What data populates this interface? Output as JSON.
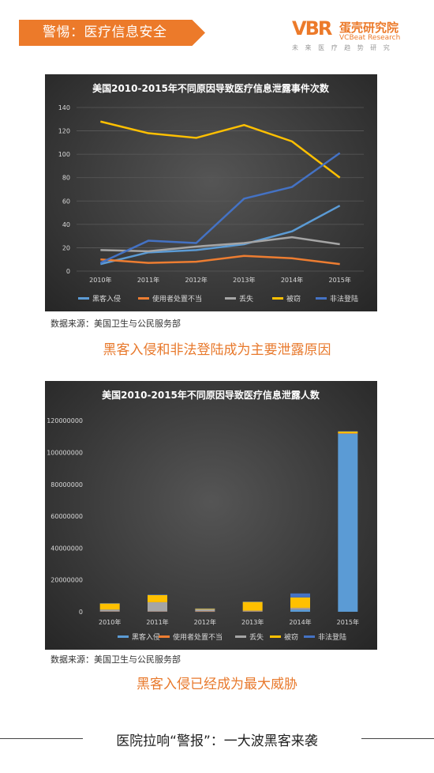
{
  "header": {
    "banner": "警惕：医疗信息安全"
  },
  "logo": {
    "mark": "VBR",
    "name": "蛋壳研究院",
    "en": "VCBeat Research",
    "slogan": "未 来 医 疗 趋 势 研 究"
  },
  "colors": {
    "orange": "#ec7a2a",
    "series": {
      "hack": "#5b9bd5",
      "misuse": "#ed7d31",
      "loss": "#a5a5a5",
      "theft": "#ffc000",
      "unauth": "#4472c4"
    }
  },
  "chart_data": [
    {
      "type": "line",
      "title": "美国2010-2015年不同原因导致医疗信息泄露事件次数",
      "x": [
        "2010年",
        "2011年",
        "2012年",
        "2013年",
        "2014年",
        "2015年"
      ],
      "ylim": [
        0,
        140
      ],
      "yticks": [
        0,
        20,
        40,
        60,
        80,
        100,
        120,
        140
      ],
      "grid": true,
      "legend": "bottom",
      "series": [
        {
          "name": "黑客入侵",
          "key": "hack",
          "values": [
            6,
            16,
            18,
            23,
            34,
            56
          ]
        },
        {
          "name": "使用者处置不当",
          "key": "misuse",
          "values": [
            10,
            7,
            8,
            13,
            11,
            6
          ]
        },
        {
          "name": "丢失",
          "key": "loss",
          "values": [
            18,
            17,
            21,
            24,
            29,
            23
          ]
        },
        {
          "name": "被窃",
          "key": "theft",
          "values": [
            128,
            118,
            114,
            125,
            111,
            80
          ]
        },
        {
          "name": "非法登陆",
          "key": "unauth",
          "values": [
            7,
            26,
            24,
            62,
            72,
            101
          ]
        }
      ]
    },
    {
      "type": "bar",
      "stacked": true,
      "title": "美国2010-2015年不同原因导致医疗信息泄露人数",
      "categories": [
        "2010年",
        "2011年",
        "2012年",
        "2013年",
        "2014年",
        "2015年"
      ],
      "ylim": [
        0,
        130000000
      ],
      "yticks": [
        "0",
        "20000000",
        "40000000",
        "60000000",
        "80000000",
        "100000000",
        "120000000"
      ],
      "grid": false,
      "legend": "bottom",
      "series": [
        {
          "name": "黑客入侵",
          "key": "hack",
          "values": [
            300000,
            400000,
            200000,
            300000,
            1500000,
            111800000
          ]
        },
        {
          "name": "使用者处置不当",
          "key": "misuse",
          "values": [
            100000,
            100000,
            100000,
            100000,
            200000,
            100000
          ]
        },
        {
          "name": "丢失",
          "key": "loss",
          "values": [
            1000000,
            5500000,
            1200000,
            300000,
            800000,
            200000
          ]
        },
        {
          "name": "被窃",
          "key": "theft",
          "values": [
            3800000,
            4500000,
            500000,
            5500000,
            6500000,
            1100000
          ]
        },
        {
          "name": "非法登陆",
          "key": "unauth",
          "values": [
            200000,
            300000,
            100000,
            200000,
            2500000,
            200000
          ]
        }
      ]
    }
  ],
  "sources": {
    "s1": "数据来源：美国卫生与公民服务部",
    "s2": "数据来源：美国卫生与公民服务部"
  },
  "captions": {
    "c1": "黑客入侵和非法登陆成为主要泄露原因",
    "c2": "黑客入侵已经成为最大威胁"
  },
  "footer": {
    "text": "医院拉响“警报”：一大波黑客来袭"
  }
}
